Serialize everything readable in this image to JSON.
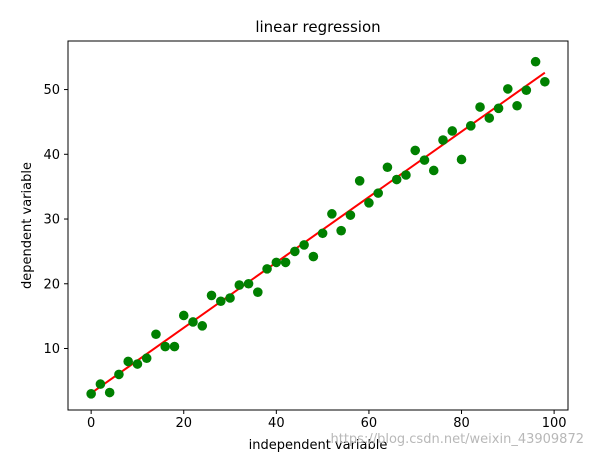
{
  "chart_data": {
    "type": "scatter",
    "title": "linear regression",
    "xlabel": "independent variable",
    "ylabel": "dependent variable",
    "xlim": [
      -5,
      103
    ],
    "ylim": [
      0.5,
      57.5
    ],
    "x_ticks": [
      0,
      20,
      40,
      60,
      80,
      100
    ],
    "y_ticks": [
      10,
      20,
      30,
      40,
      50
    ],
    "grid": false,
    "series": [
      {
        "type": "scatter",
        "color": "#008000",
        "points": [
          [
            0,
            3.0
          ],
          [
            2,
            4.5
          ],
          [
            4,
            3.2
          ],
          [
            6,
            6.0
          ],
          [
            8,
            8.0
          ],
          [
            10,
            7.6
          ],
          [
            12,
            8.5
          ],
          [
            14,
            12.2
          ],
          [
            16,
            10.3
          ],
          [
            18,
            10.3
          ],
          [
            20,
            15.1
          ],
          [
            22,
            14.1
          ],
          [
            24,
            13.5
          ],
          [
            26,
            18.2
          ],
          [
            28,
            17.3
          ],
          [
            30,
            17.8
          ],
          [
            32,
            19.8
          ],
          [
            34,
            20.0
          ],
          [
            36,
            18.7
          ],
          [
            38,
            22.3
          ],
          [
            40,
            23.3
          ],
          [
            42,
            23.3
          ],
          [
            44,
            25.0
          ],
          [
            46,
            26.0
          ],
          [
            48,
            24.2
          ],
          [
            50,
            27.8
          ],
          [
            52,
            30.8
          ],
          [
            54,
            28.2
          ],
          [
            56,
            30.6
          ],
          [
            58,
            35.9
          ],
          [
            60,
            32.5
          ],
          [
            62,
            34.0
          ],
          [
            64,
            38.0
          ],
          [
            66,
            36.1
          ],
          [
            68,
            36.8
          ],
          [
            70,
            40.6
          ],
          [
            72,
            39.1
          ],
          [
            74,
            37.5
          ],
          [
            76,
            42.2
          ],
          [
            78,
            43.6
          ],
          [
            80,
            39.2
          ],
          [
            82,
            44.4
          ],
          [
            84,
            47.3
          ],
          [
            86,
            45.6
          ],
          [
            88,
            47.1
          ],
          [
            90,
            50.1
          ],
          [
            92,
            47.5
          ],
          [
            94,
            49.9
          ],
          [
            96,
            54.3
          ],
          [
            98,
            51.2
          ]
        ]
      },
      {
        "type": "line",
        "color": "#ff0000",
        "points": [
          [
            0,
            3.1
          ],
          [
            98,
            52.6
          ]
        ]
      }
    ],
    "watermark": "https://blog.csdn.net/weixin_43909872"
  }
}
